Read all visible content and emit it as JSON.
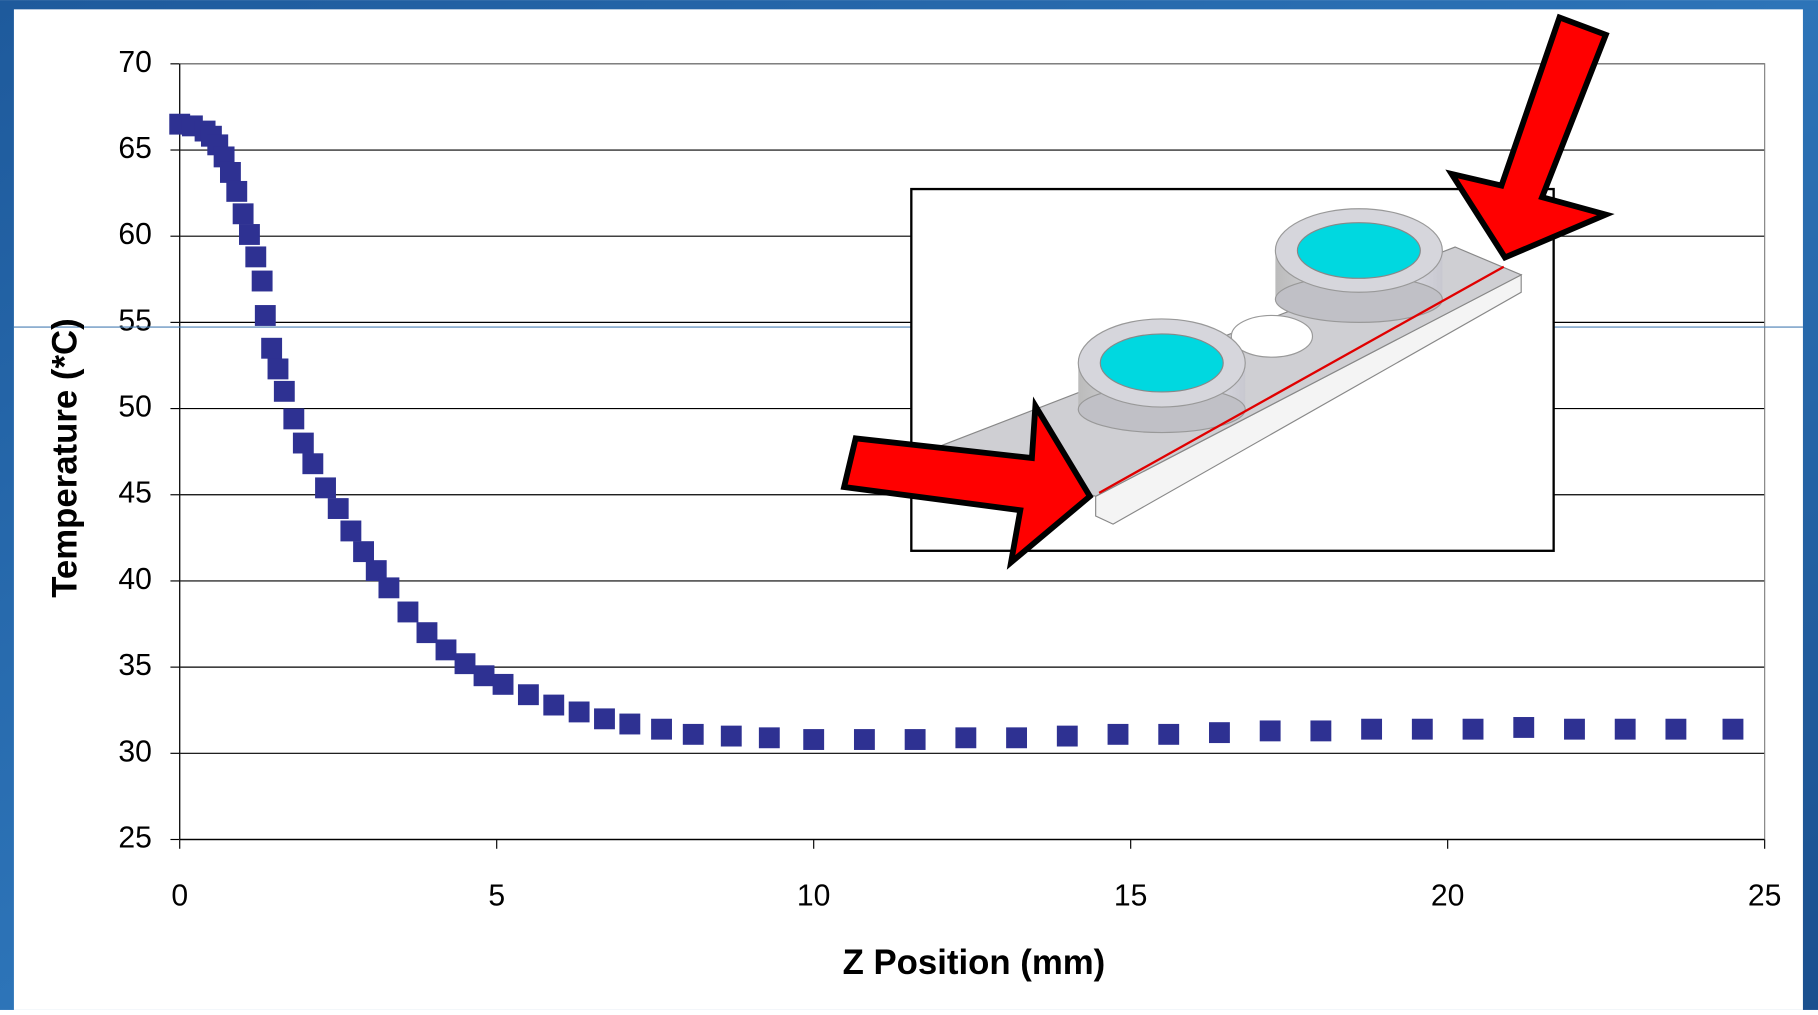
{
  "chart_data": {
    "type": "scatter",
    "x_label": "Z Position (mm)",
    "y_label": "Temperature (*C)",
    "color": "#2e3192",
    "x": [
      0,
      0.2,
      0.4,
      0.5,
      0.6,
      0.7,
      0.8,
      0.9,
      1.0,
      1.1,
      1.2,
      1.3,
      1.35,
      1.45,
      1.55,
      1.65,
      1.8,
      1.95,
      2.1,
      2.3,
      2.5,
      2.7,
      2.9,
      3.1,
      3.3,
      3.6,
      3.9,
      4.2,
      4.5,
      4.8,
      5.1,
      5.5,
      5.9,
      6.3,
      6.7,
      7.1,
      7.6,
      8.1,
      8.7,
      9.3,
      10,
      10.8,
      11.6,
      12.4,
      13.2,
      14,
      14.8,
      15.6,
      16.4,
      17.2,
      18,
      18.8,
      19.6,
      20.4,
      21.2,
      22,
      22.8,
      23.6,
      24.5
    ],
    "values": [
      66.5,
      66.4,
      66.1,
      65.8,
      65.3,
      64.6,
      63.7,
      62.6,
      61.3,
      60.1,
      58.8,
      57.4,
      55.4,
      53.5,
      52.3,
      51.0,
      49.4,
      48.0,
      46.8,
      45.4,
      44.2,
      42.9,
      41.7,
      40.6,
      39.6,
      38.2,
      37.0,
      36.0,
      35.2,
      34.5,
      34.0,
      33.4,
      32.8,
      32.4,
      32.0,
      31.7,
      31.4,
      31.1,
      31.0,
      30.9,
      30.8,
      30.8,
      30.8,
      30.9,
      30.9,
      31.0,
      31.1,
      31.1,
      31.2,
      31.3,
      31.3,
      31.4,
      31.4,
      31.4,
      31.5,
      31.4,
      31.4,
      31.4,
      31.4
    ],
    "xlim": [
      0,
      25
    ],
    "xticks": [
      0,
      5,
      10,
      15,
      20,
      25
    ],
    "ylim": [
      25,
      70
    ],
    "yticks": [
      25,
      30,
      35,
      40,
      45,
      50,
      55,
      60,
      65,
      70
    ],
    "grid": true
  }
}
